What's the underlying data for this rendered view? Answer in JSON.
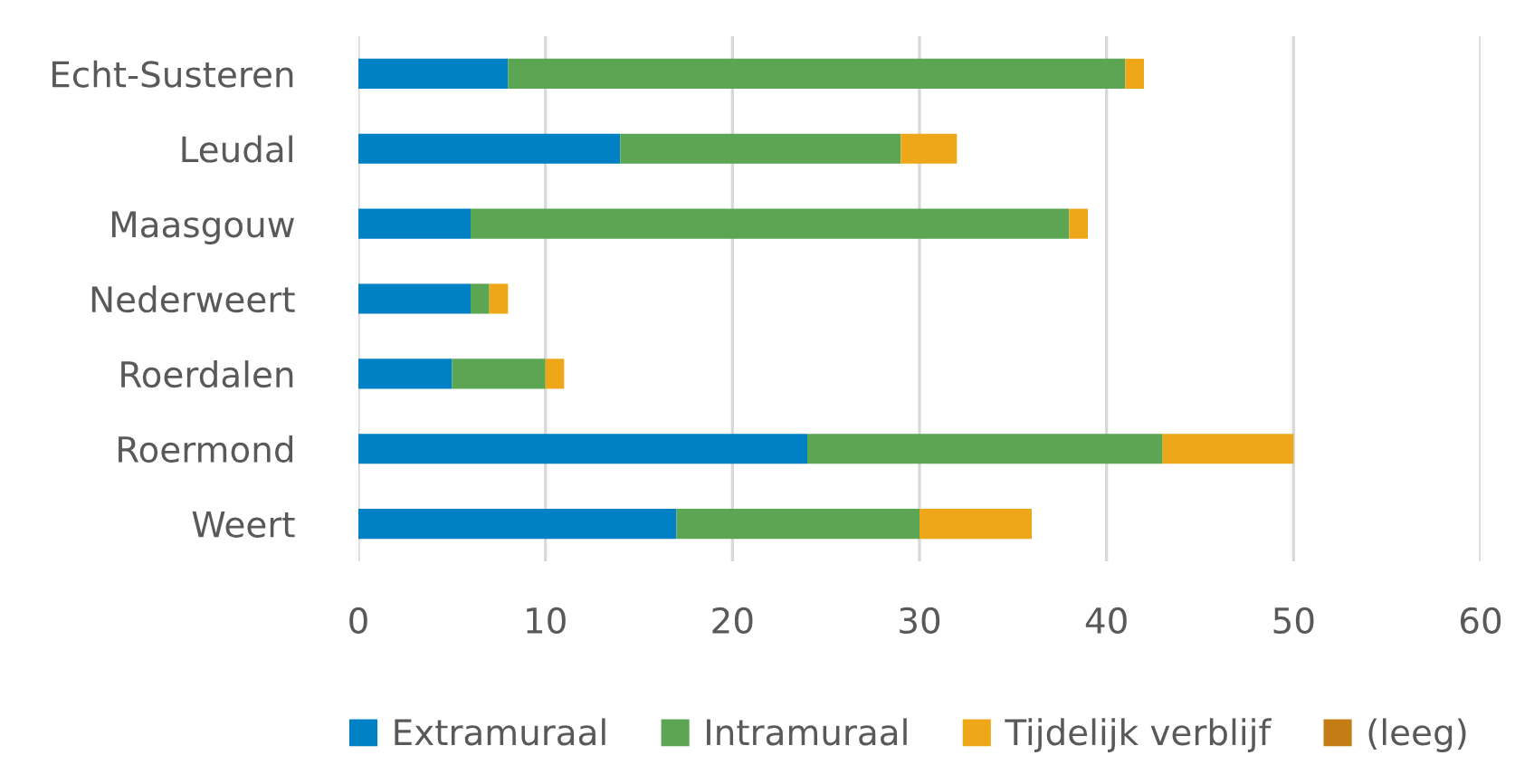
{
  "chart_data": {
    "type": "bar",
    "orientation": "horizontal",
    "stacked": true,
    "categories": [
      "Echt-Susteren",
      "Leudal",
      "Maasgouw",
      "Nederweert",
      "Roerdalen",
      "Roermond",
      "Weert"
    ],
    "series": [
      {
        "name": "Extramuraal",
        "color": "#0081c5",
        "values": [
          8,
          14,
          6,
          6,
          5,
          24,
          17
        ]
      },
      {
        "name": "Intramuraal",
        "color": "#5ba553",
        "values": [
          33,
          15,
          32,
          1,
          5,
          19,
          13
        ]
      },
      {
        "name": "Tijdelijk verblijf",
        "color": "#eea719",
        "values": [
          1,
          3,
          1,
          1,
          1,
          7,
          6
        ]
      },
      {
        "name": "(leeg)",
        "color": "#c47d14",
        "values": [
          0,
          0,
          0,
          0,
          0,
          0,
          0
        ]
      }
    ],
    "xlim": [
      0,
      60
    ],
    "xticks": [
      0,
      10,
      20,
      30,
      40,
      50,
      60
    ],
    "grid": "x",
    "legend": "bottom"
  }
}
